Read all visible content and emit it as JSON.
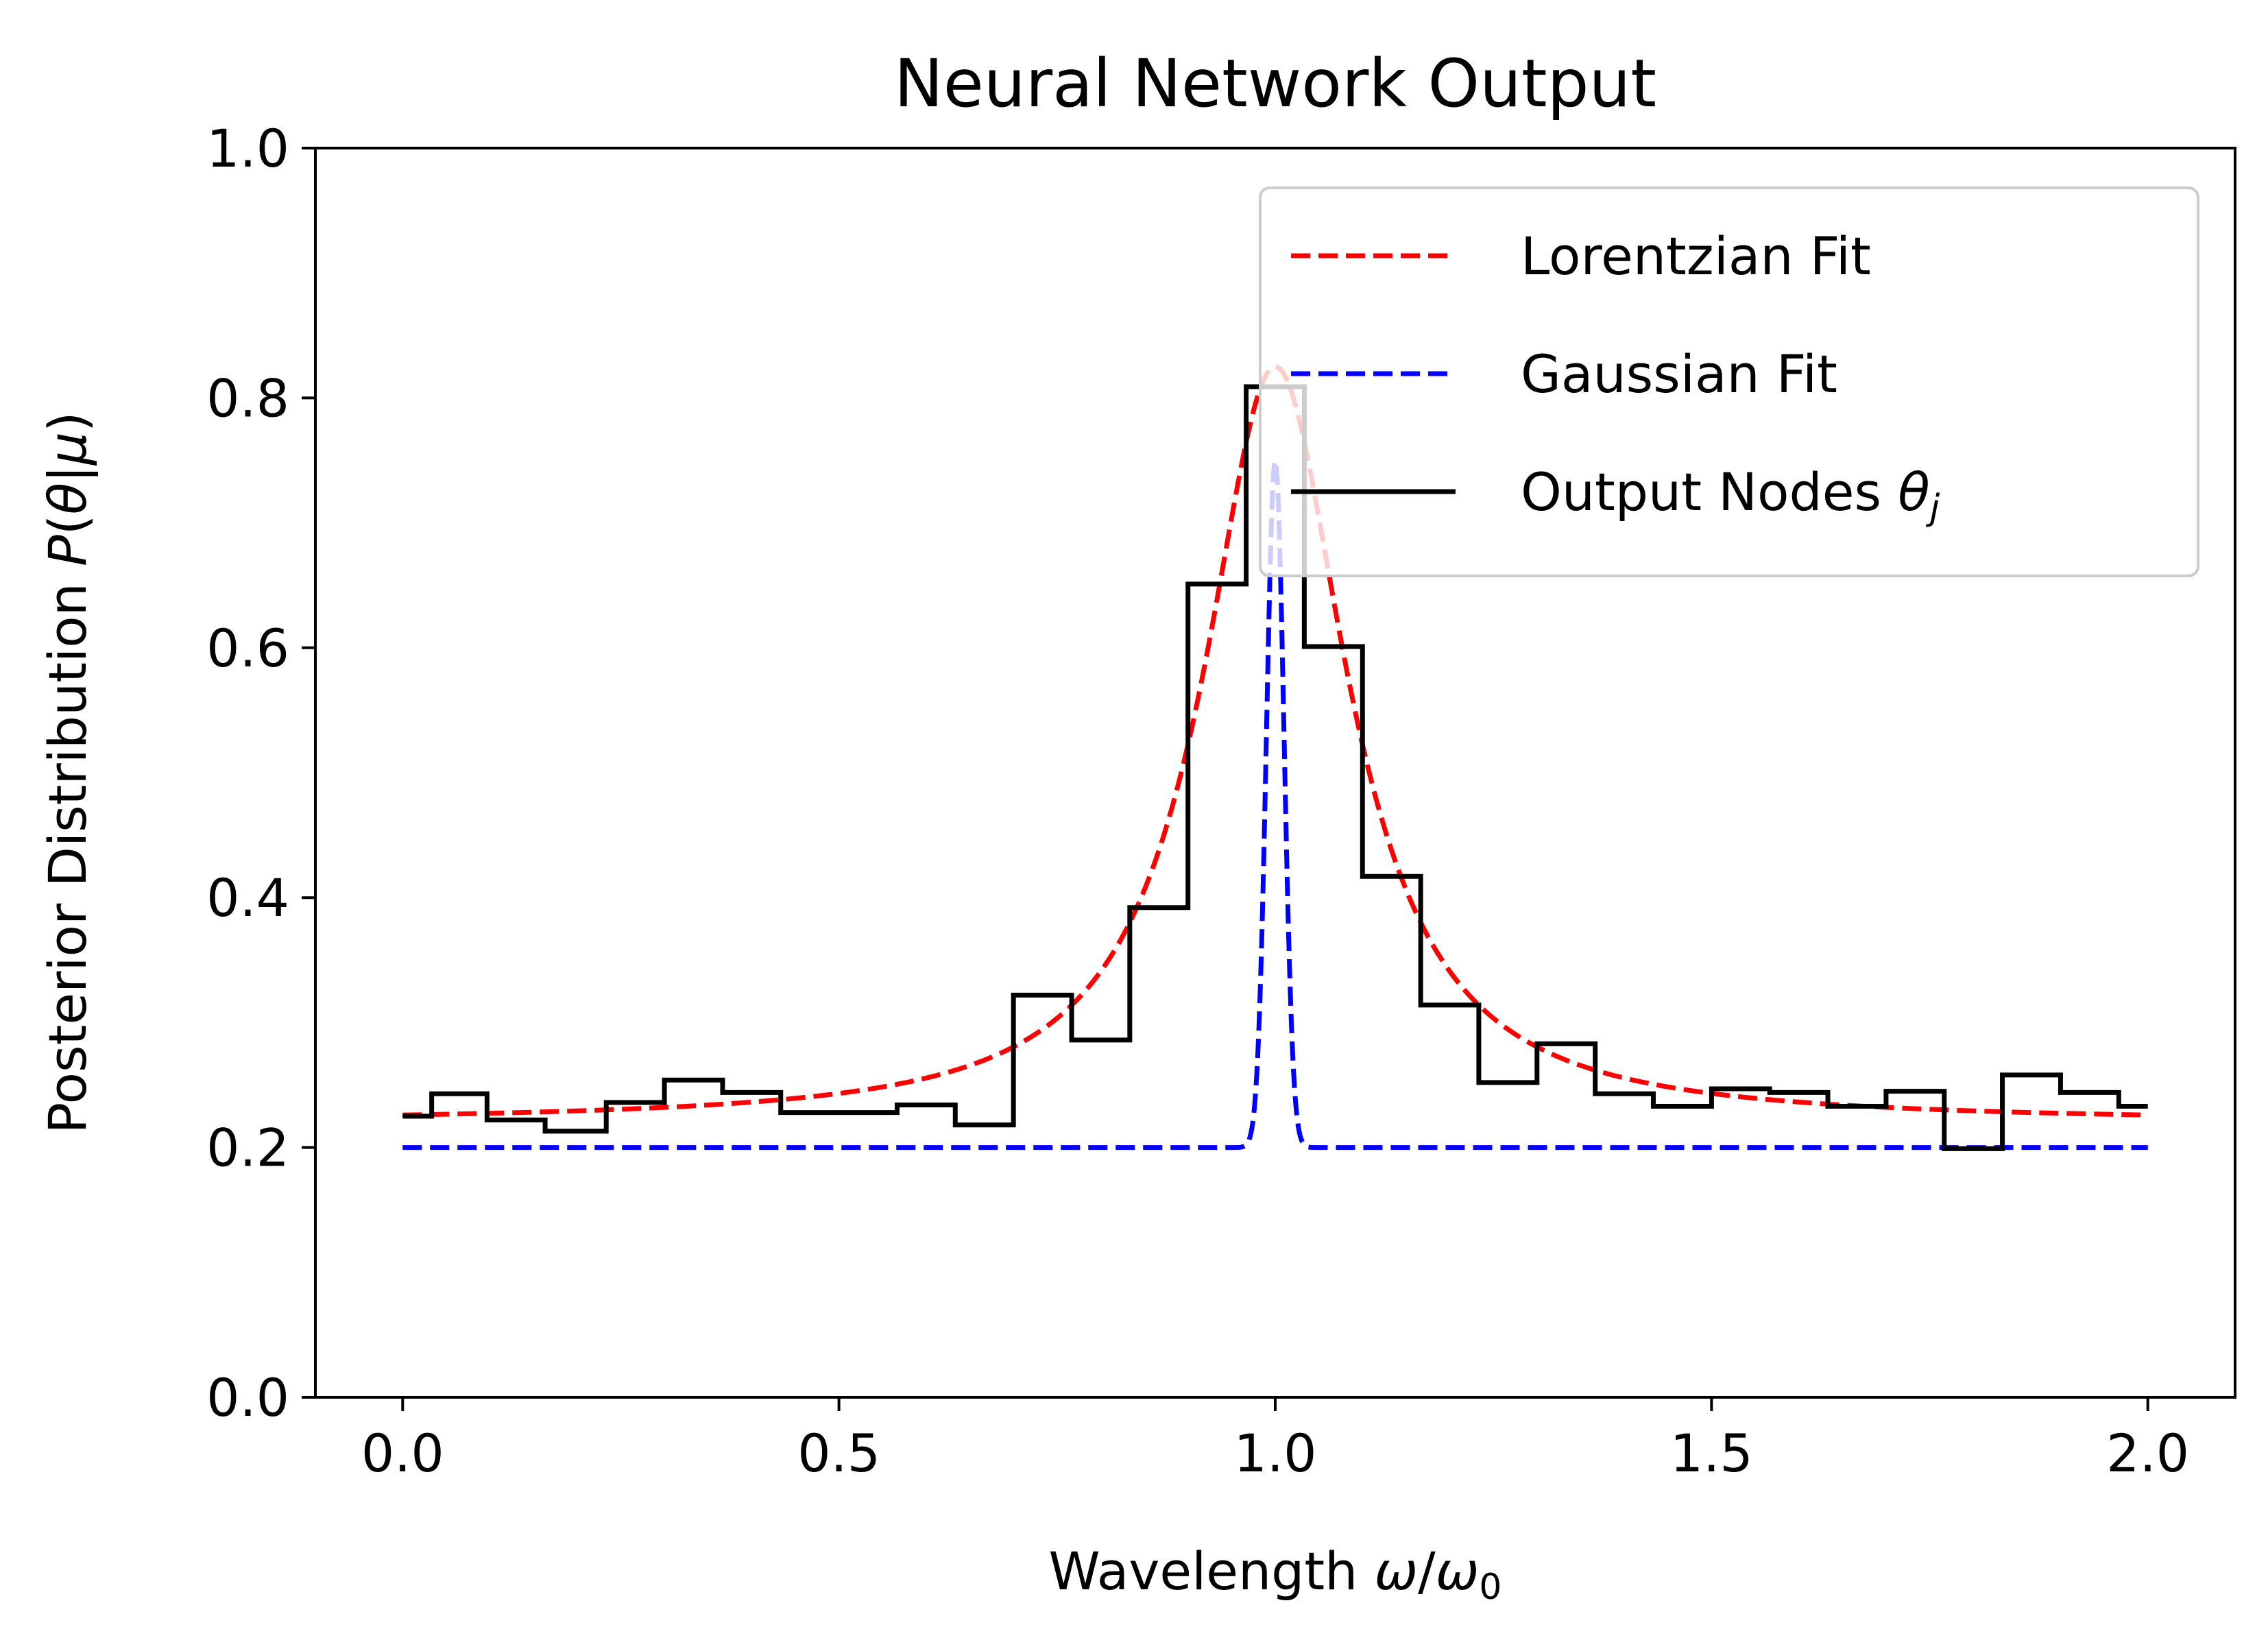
{
  "chart_data": {
    "type": "line",
    "title": "Neural Network Output",
    "xlabel": {
      "base": "Wavelength ",
      "var1": "ω",
      "slash": "/",
      "var2": "ω",
      "sub": "0"
    },
    "ylabel": {
      "base": "Posterior Distribution ",
      "P": "P",
      "open": "(",
      "theta": "θ",
      "bar": "|",
      "mu": "μ",
      "close": ")"
    },
    "xlim": [
      -0.1,
      2.1
    ],
    "ylim": [
      0.0,
      1.0
    ],
    "xticks": [
      0.0,
      0.5,
      1.0,
      1.5,
      2.0
    ],
    "xtick_labels": [
      "0.0",
      "0.5",
      "1.0",
      "1.5",
      "2.0"
    ],
    "yticks": [
      0.0,
      0.2,
      0.4,
      0.6,
      0.8,
      1.0
    ],
    "ytick_labels": [
      "0.0",
      "0.2",
      "0.4",
      "0.6",
      "0.8",
      "1.0"
    ],
    "grid": false,
    "legend_position": "top-right",
    "series": [
      {
        "name": "Lorentzian Fit",
        "kind": "lorentzian",
        "color": "#ff0000",
        "style": "dashed",
        "baseline": 0.22,
        "amplitude": 0.605,
        "center": 1.0,
        "gamma": 0.1,
        "x_range": [
          0.0,
          2.0
        ]
      },
      {
        "name": "Gaussian Fit",
        "kind": "gaussian",
        "color": "#0000ff",
        "style": "dashed",
        "baseline": 0.2,
        "amplitude": 0.55,
        "center": 1.0,
        "sigma": 0.01,
        "x_range": [
          0.0,
          2.0
        ]
      },
      {
        "name": {
          "base": "Output Nodes ",
          "theta": "θ",
          "sub": "j"
        },
        "kind": "step",
        "color": "#000000",
        "style": "solid",
        "bin_edges": [
          0.0,
          0.0333,
          0.0967,
          0.1633,
          0.2333,
          0.3,
          0.3667,
          0.4333,
          0.5667,
          0.6333,
          0.7,
          0.7667,
          0.8333,
          0.9,
          0.9667,
          1.0333,
          1.1,
          1.1667,
          1.2333,
          1.3,
          1.3667,
          1.4333,
          1.5,
          1.5667,
          1.6333,
          1.7,
          1.7667,
          1.8333,
          1.9,
          1.9667,
          2.0
        ],
        "values": [
          0.225,
          0.243,
          0.222,
          0.213,
          0.236,
          0.254,
          0.244,
          0.228,
          0.234,
          0.218,
          0.322,
          0.286,
          0.392,
          0.651,
          0.809,
          0.601,
          0.417,
          0.314,
          0.252,
          0.283,
          0.243,
          0.233,
          0.247,
          0.244,
          0.233,
          0.245,
          0.199,
          0.258,
          0.244,
          0.233
        ]
      }
    ]
  }
}
